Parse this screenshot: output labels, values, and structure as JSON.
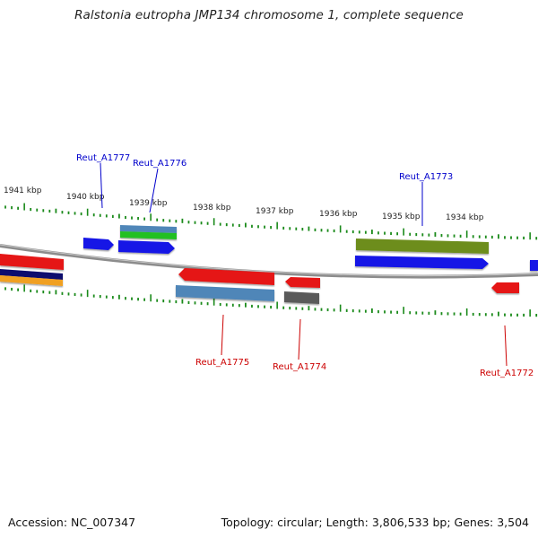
{
  "title": "Ralstonia eutropha JMP134 chromosome 1, complete sequence",
  "footer": {
    "accession": "Accession: NC_007347",
    "stats": "Topology: circular; Length: 3,806,533 bp; Genes: 3,504"
  },
  "colors": {
    "forward_label": "#0000cc",
    "reverse_label": "#cc0000",
    "tick": "#1a8a1a",
    "backbone": "#888888"
  },
  "scale_labels": [
    "1941 kbp",
    "1940 kbp",
    "1939 kbp",
    "1938 kbp",
    "1937 kbp",
    "1936 kbp",
    "1935 kbp",
    "1934 kbp"
  ],
  "gene_labels": {
    "forward": [
      "Reut_A1777",
      "Reut_A1776",
      "Reut_A1773"
    ],
    "reverse": [
      "Reut_A1775",
      "Reut_A1774",
      "Reut_A1772"
    ]
  }
}
